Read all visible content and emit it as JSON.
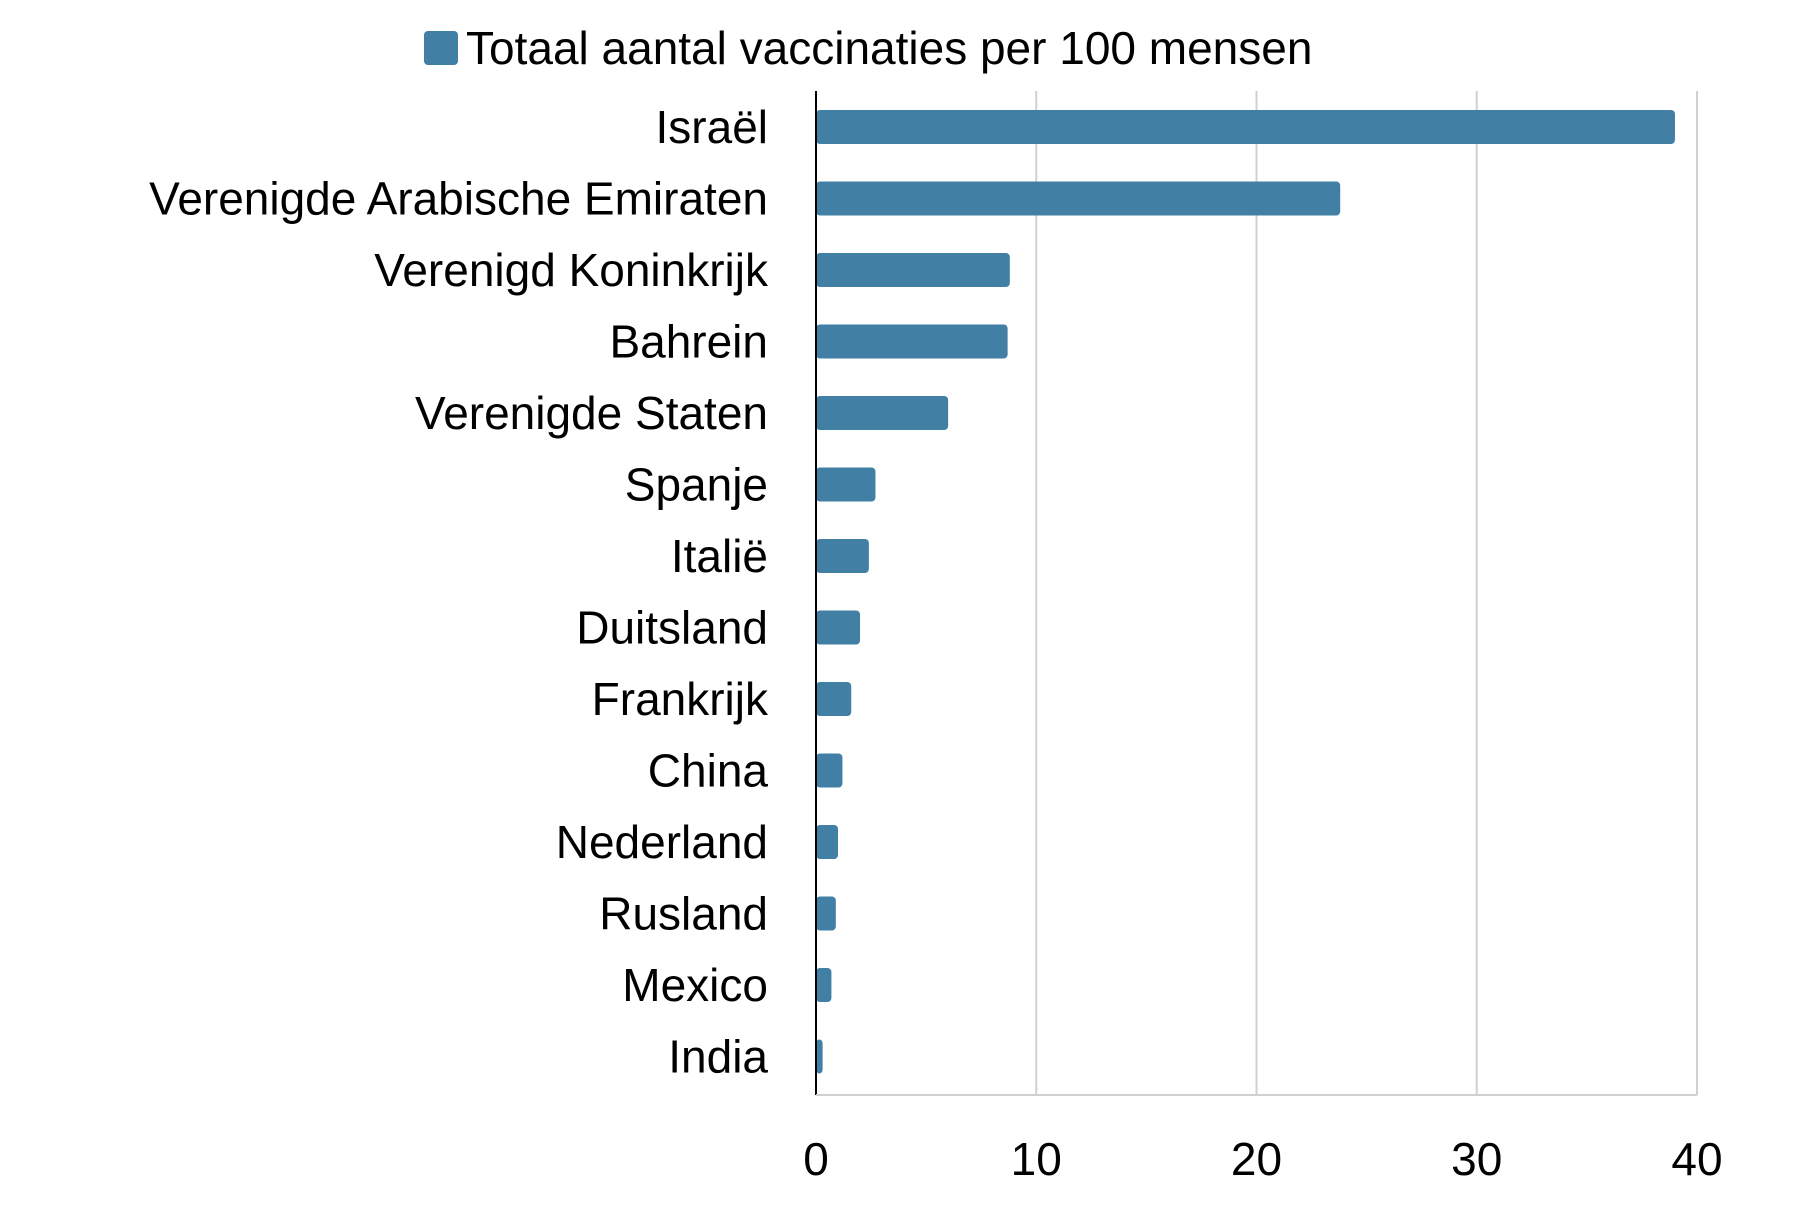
{
  "chart_data": {
    "type": "bar",
    "orientation": "horizontal",
    "categories": [
      "Israël",
      "Verenigde Arabische Emiraten",
      "Verenigd Koninkrijk",
      "Bahrein",
      "Verenigde Staten",
      "Spanje",
      "Italië",
      "Duitsland",
      "Frankrijk",
      "China",
      "Nederland",
      "Rusland",
      "Mexico",
      "India"
    ],
    "series": [
      {
        "name": "Totaal aantal vaccinaties per 100 mensen",
        "values": [
          39.0,
          23.8,
          8.8,
          8.7,
          6.0,
          2.7,
          2.4,
          2.0,
          1.6,
          1.2,
          1.0,
          0.9,
          0.7,
          0.3
        ],
        "color": "#427fa4"
      }
    ],
    "title": "",
    "xlabel": "",
    "ylabel": "",
    "xlim": [
      0,
      40
    ],
    "xticks": [
      "0",
      "10",
      "20",
      "30",
      "40"
    ],
    "grid": "vertical",
    "legend": "top"
  },
  "colors": {
    "bar": "#427fa4",
    "grid": "#d0d0d0",
    "axis": "#000000"
  }
}
